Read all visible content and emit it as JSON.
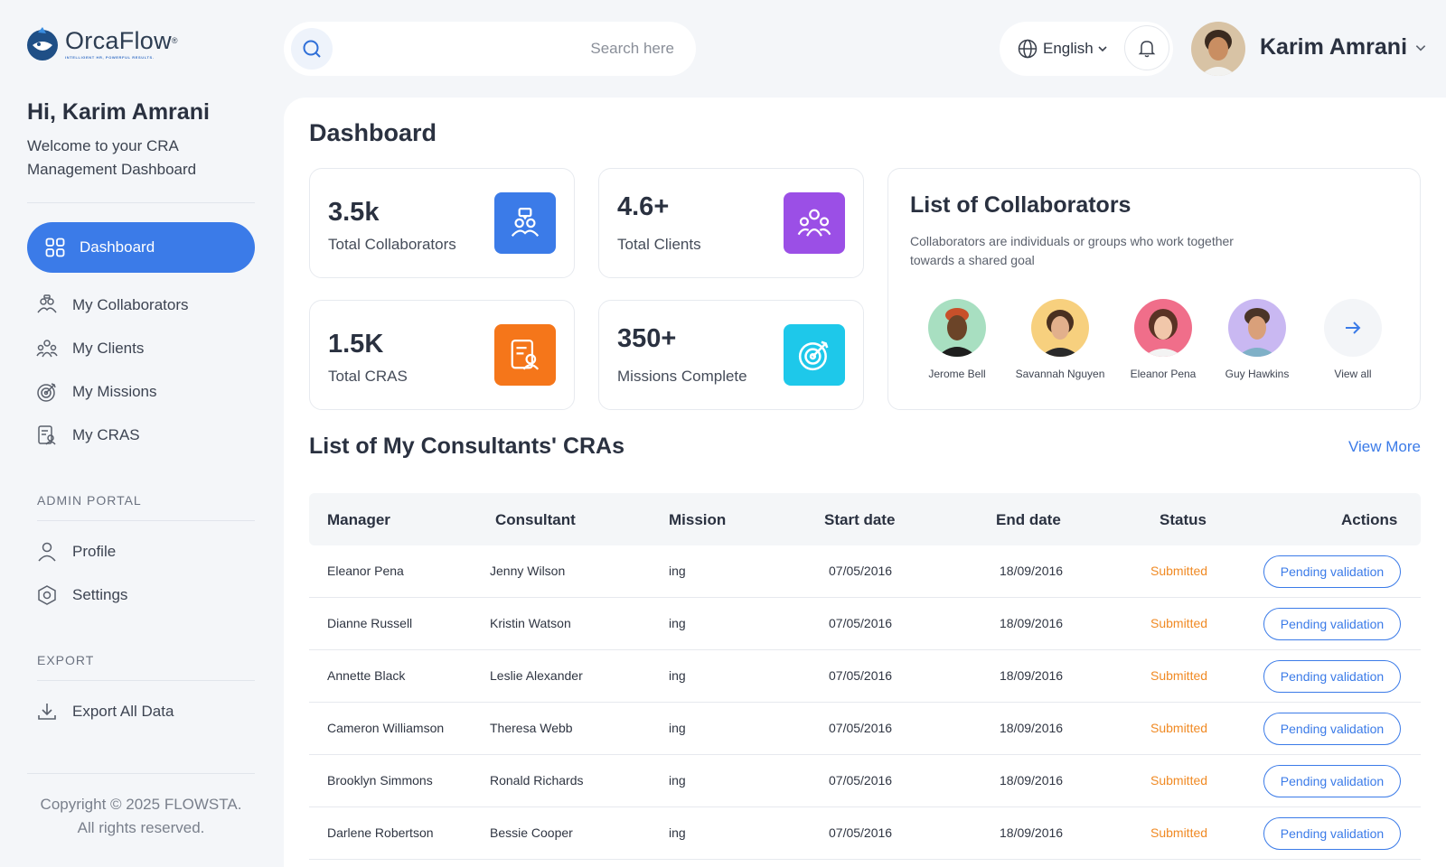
{
  "brand": {
    "name": "OrcaFlow",
    "registered": "®",
    "tagline": "INTELLIGENT HR, POWERFUL RESULTS."
  },
  "greeting": {
    "title": "Hi, Karim Amrani",
    "subtitle": "Welcome to your CRA Management Dashboard"
  },
  "sidebar": {
    "active": {
      "label": "Dashboard",
      "icon": "grid-icon"
    },
    "items": [
      {
        "label": "My Collaborators",
        "icon": "collaborators-icon"
      },
      {
        "label": "My Clients",
        "icon": "clients-icon"
      },
      {
        "label": "My Missions",
        "icon": "target-icon"
      },
      {
        "label": "My CRAS",
        "icon": "document-icon"
      }
    ],
    "admin_heading": "ADMIN PORTAL",
    "admin_items": [
      {
        "label": "Profile",
        "icon": "user-icon"
      },
      {
        "label": "Settings",
        "icon": "settings-icon"
      }
    ],
    "export_heading": "EXPORT",
    "export_items": [
      {
        "label": "Export All Data",
        "icon": "download-icon"
      }
    ],
    "copyright_line1": "Copyright © 2025 FLOWSTA.",
    "copyright_line2": "All rights reserved."
  },
  "topbar": {
    "search_placeholder": "Search here",
    "language": "English",
    "user_name": "Karim Amrani"
  },
  "page_title": "Dashboard",
  "stats": [
    {
      "value": "3.5k",
      "label": "Total Collaborators",
      "color": "#3b7be8",
      "icon": "collaborators-icon"
    },
    {
      "value": "4.6+",
      "label": "Total Clients",
      "color": "#9b4fe6",
      "icon": "clients-icon"
    },
    {
      "value": "1.5K",
      "label": "Total CRAS",
      "color": "#f5761a",
      "icon": "document-icon"
    },
    {
      "value": "350+",
      "label": "Missions Complete",
      "color": "#1ec8ea",
      "icon": "target-icon"
    }
  ],
  "collaborators": {
    "title": "List of Collaborators",
    "description": "Collaborators are individuals or groups who work together towards a shared goal",
    "people": [
      {
        "name": "Jerome Bell",
        "bg": "#a8dfc1"
      },
      {
        "name": "Savannah Nguyen",
        "bg": "#f7d07e"
      },
      {
        "name": "Eleanor Pena",
        "bg": "#f06e8a"
      },
      {
        "name": "Guy Hawkins",
        "bg": "#c9b8f2"
      }
    ],
    "view_all": "View all"
  },
  "cra_section": {
    "title": "List of My Consultants' CRAs",
    "view_more": "View More",
    "columns": [
      "Manager",
      "Consultant",
      "Mission",
      "Start date",
      "End date",
      "Status",
      "Actions"
    ],
    "rows": [
      {
        "manager": "Eleanor Pena",
        "consultant": "Jenny Wilson",
        "mission": "ing",
        "start": "07/05/2016",
        "end": "18/09/2016",
        "status": "Submitted",
        "action": "Pending validation"
      },
      {
        "manager": "Dianne Russell",
        "consultant": "Kristin Watson",
        "mission": "ing",
        "start": "07/05/2016",
        "end": "18/09/2016",
        "status": "Submitted",
        "action": "Pending validation"
      },
      {
        "manager": "Annette Black",
        "consultant": "Leslie Alexander",
        "mission": "ing",
        "start": "07/05/2016",
        "end": "18/09/2016",
        "status": "Submitted",
        "action": "Pending validation"
      },
      {
        "manager": "Cameron Williamson",
        "consultant": "Theresa Webb",
        "mission": "ing",
        "start": "07/05/2016",
        "end": "18/09/2016",
        "status": "Submitted",
        "action": "Pending validation"
      },
      {
        "manager": "Brooklyn Simmons",
        "consultant": "Ronald Richards",
        "mission": "ing",
        "start": "07/05/2016",
        "end": "18/09/2016",
        "status": "Submitted",
        "action": "Pending validation"
      },
      {
        "manager": "Darlene Robertson",
        "consultant": "Bessie Cooper",
        "mission": "ing",
        "start": "07/05/2016",
        "end": "18/09/2016",
        "status": "Submitted",
        "action": "Pending validation"
      }
    ]
  }
}
